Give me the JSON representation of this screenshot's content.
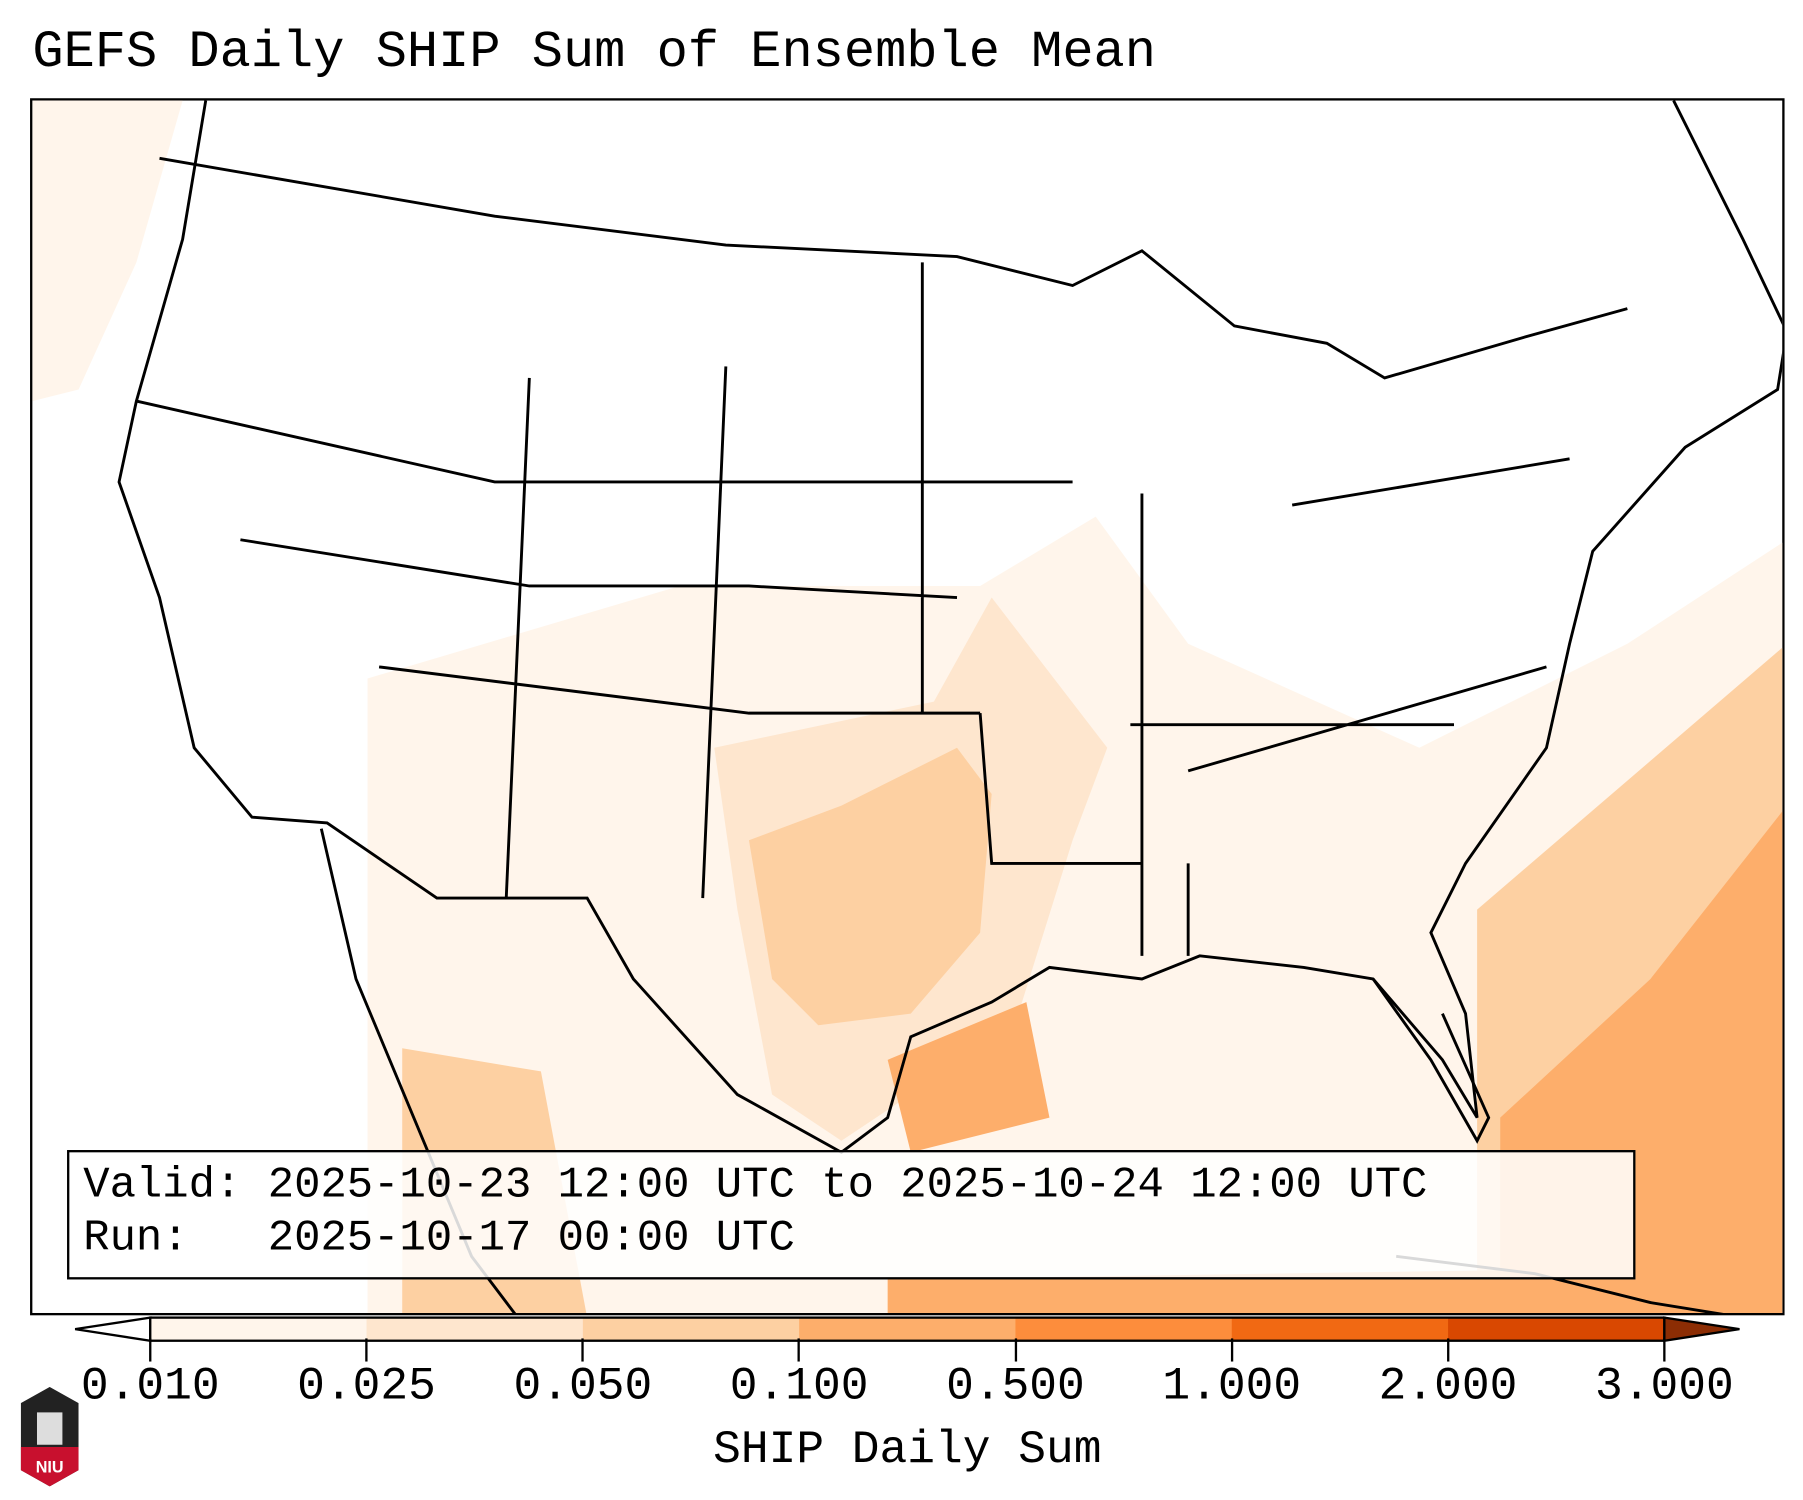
{
  "title": "GEFS Daily SHIP Sum of Ensemble Mean",
  "info": {
    "valid_label": "Valid:",
    "valid_value": "2025-10-23 12:00 UTC to 2025-10-24 12:00 UTC",
    "run_label": "Run:",
    "run_value": "2025-10-17 00:00 UTC"
  },
  "colorbar": {
    "label": "SHIP Daily Sum",
    "ticks": [
      "0.010",
      "0.025",
      "0.050",
      "0.100",
      "0.500",
      "1.000",
      "2.000",
      "3.000"
    ],
    "colors": [
      "#fff5eb",
      "#fee6ce",
      "#fdd0a2",
      "#fdae6b",
      "#fd8d3c",
      "#f16913",
      "#d94801"
    ],
    "under_color": "#ffffff",
    "over_color": "#8c2d04"
  },
  "logo": {
    "text": "NIU"
  }
}
